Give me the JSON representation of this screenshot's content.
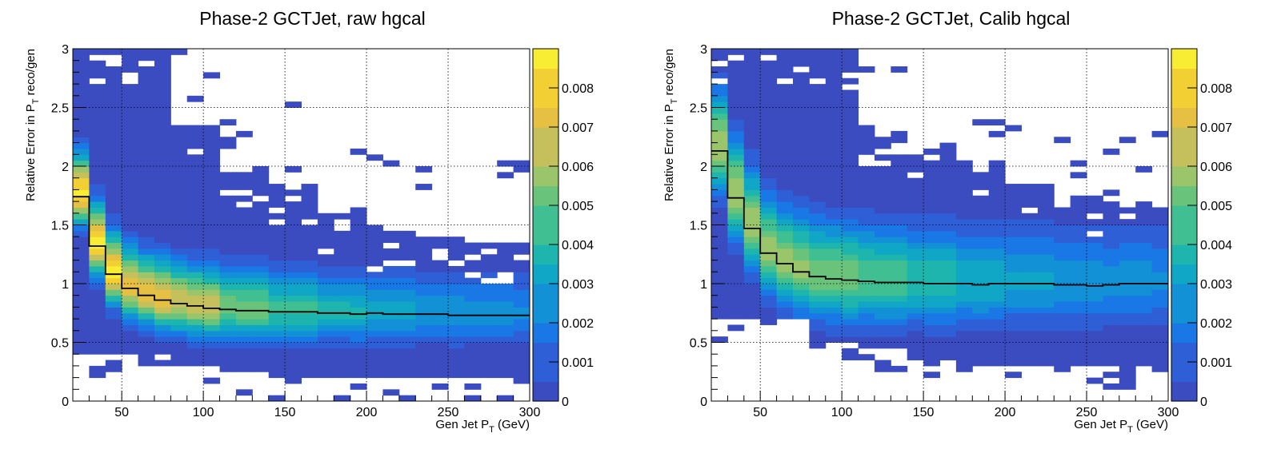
{
  "palette": [
    "#3b4cc0",
    "#2e5fd6",
    "#1a78e6",
    "#1291d6",
    "#10a6c6",
    "#1db5ad",
    "#3fbf92",
    "#6ac37a",
    "#9ac56b",
    "#c5c05b",
    "#e6c043",
    "#f2d033",
    "#f9ed33"
  ],
  "colorbar": {
    "max": 0.009,
    "ticks": [
      {
        "v": 0.0,
        "label": "0"
      },
      {
        "v": 0.001,
        "label": "0.001"
      },
      {
        "v": 0.002,
        "label": "0.002"
      },
      {
        "v": 0.003,
        "label": "0.003"
      },
      {
        "v": 0.004,
        "label": "0.004"
      },
      {
        "v": 0.005,
        "label": "0.005"
      },
      {
        "v": 0.006,
        "label": "0.006"
      },
      {
        "v": 0.007,
        "label": "0.007"
      },
      {
        "v": 0.008,
        "label": "0.008"
      }
    ]
  },
  "chart_data": [
    {
      "type": "heatmap",
      "title": "Phase-2 GCTJet, raw hgcal",
      "xlabel_main": "Gen Jet P",
      "xlabel_sub": "T",
      "xlabel_unit": " (GeV)",
      "ylabel_main": "Relative Error in P",
      "ylabel_sub": "T",
      "ylabel_rest": " reco/gen",
      "xlim": [
        20,
        300
      ],
      "ylim": [
        0,
        3
      ],
      "grid": true,
      "x_ticks": [
        {
          "v": 50,
          "label": "50"
        },
        {
          "v": 100,
          "label": "100"
        },
        {
          "v": 150,
          "label": "150"
        },
        {
          "v": 200,
          "label": "200"
        },
        {
          "v": 250,
          "label": "250"
        },
        {
          "v": 300,
          "label": "300"
        }
      ],
      "y_ticks": [
        {
          "v": 0,
          "label": "0"
        },
        {
          "v": 0.5,
          "label": "0.5"
        },
        {
          "v": 1,
          "label": "1"
        },
        {
          "v": 1.5,
          "label": "1.5"
        },
        {
          "v": 2,
          "label": "2"
        },
        {
          "v": 2.5,
          "label": "2.5"
        },
        {
          "v": 3,
          "label": "3"
        }
      ],
      "x_bin_width": 10,
      "y_bin_width": 0.05,
      "model": {
        "peak": [
          0.0085,
          0.0075,
          0.0068,
          0.0052,
          0.0043,
          0.0036,
          0.003,
          0.0026,
          0.0024,
          0.0022
        ],
        "top": [
          3.0,
          3.0,
          2.35,
          2.0,
          1.85,
          1.6,
          1.45,
          1.4,
          1.35,
          1.35
        ],
        "bottom": [
          0.42,
          0.4,
          0.3,
          0.26,
          0.2,
          0.2,
          0.2,
          0.2,
          0.2,
          0.2
        ],
        "sigma_up": 0.22,
        "sigma_dn": 0.17
      },
      "profile": {
        "x": [
          25,
          35,
          45,
          55,
          65,
          75,
          85,
          95,
          105,
          115,
          125,
          135,
          145,
          155,
          165,
          175,
          185,
          195,
          205,
          215,
          225,
          235,
          245,
          255,
          265,
          275,
          285,
          295
        ],
        "y": [
          1.74,
          1.32,
          1.08,
          0.96,
          0.9,
          0.86,
          0.83,
          0.81,
          0.79,
          0.78,
          0.77,
          0.77,
          0.76,
          0.76,
          0.76,
          0.75,
          0.75,
          0.74,
          0.75,
          0.74,
          0.74,
          0.74,
          0.74,
          0.73,
          0.73,
          0.73,
          0.73,
          0.73
        ]
      }
    },
    {
      "type": "heatmap",
      "title": "Phase-2 GCTJet, Calib hgcal",
      "xlabel_main": "Gen Jet P",
      "xlabel_sub": "T",
      "xlabel_unit": " (GeV)",
      "ylabel_main": "Relative Error in P",
      "ylabel_sub": "T",
      "ylabel_rest": " reco/gen",
      "xlim": [
        20,
        300
      ],
      "ylim": [
        0,
        3
      ],
      "grid": true,
      "x_ticks": [
        {
          "v": 50,
          "label": "50"
        },
        {
          "v": 100,
          "label": "100"
        },
        {
          "v": 150,
          "label": "150"
        },
        {
          "v": 200,
          "label": "200"
        },
        {
          "v": 250,
          "label": "250"
        },
        {
          "v": 300,
          "label": "300"
        }
      ],
      "y_ticks": [
        {
          "v": 0,
          "label": "0"
        },
        {
          "v": 0.5,
          "label": "0.5"
        },
        {
          "v": 1,
          "label": "1"
        },
        {
          "v": 1.5,
          "label": "1.5"
        },
        {
          "v": 2,
          "label": "2"
        },
        {
          "v": 2.5,
          "label": "2.5"
        },
        {
          "v": 3,
          "label": "3"
        }
      ],
      "x_bin_width": 10,
      "y_bin_width": 0.05,
      "model": {
        "peak": [
          0.0062,
          0.0058,
          0.0054,
          0.0048,
          0.004,
          0.0034,
          0.0029,
          0.0026,
          0.0024,
          0.0022
        ],
        "top": [
          3.0,
          3.0,
          3.0,
          2.35,
          2.2,
          2.05,
          1.85,
          1.75,
          1.7,
          1.65
        ],
        "bottom": [
          0.7,
          0.7,
          0.5,
          0.45,
          0.35,
          0.3,
          0.28,
          0.28,
          0.28,
          0.3
        ],
        "sigma_up": 0.3,
        "sigma_dn": 0.24
      },
      "profile": {
        "x": [
          25,
          35,
          45,
          55,
          65,
          75,
          85,
          95,
          105,
          115,
          125,
          135,
          145,
          155,
          165,
          175,
          185,
          195,
          205,
          215,
          225,
          235,
          245,
          255,
          265,
          275,
          285,
          295
        ],
        "y": [
          2.13,
          1.73,
          1.47,
          1.26,
          1.17,
          1.1,
          1.06,
          1.04,
          1.03,
          1.02,
          1.01,
          1.01,
          1.01,
          1.0,
          1.0,
          1.0,
          0.99,
          1.0,
          1.0,
          1.0,
          1.0,
          0.99,
          0.99,
          0.98,
          0.99,
          1.0,
          1.0,
          1.0
        ]
      }
    }
  ]
}
